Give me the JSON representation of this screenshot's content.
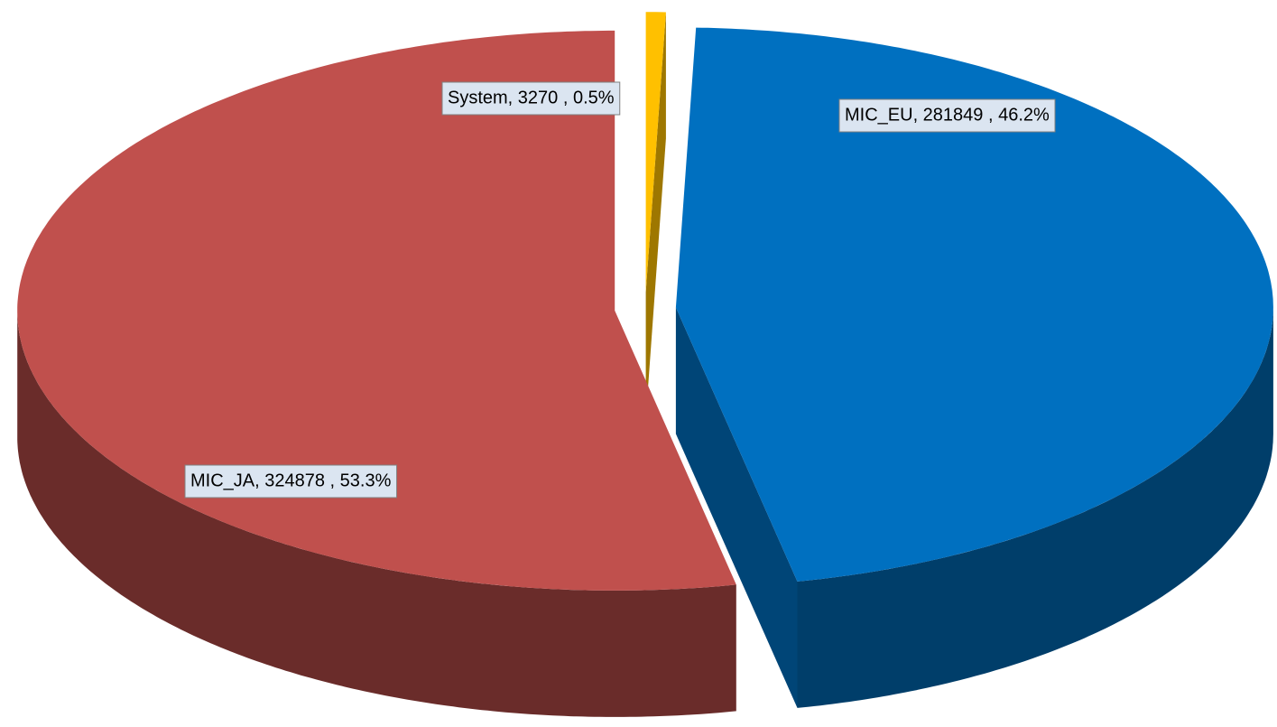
{
  "chart_data": {
    "type": "pie",
    "categories": [
      "System",
      "MIC_EU",
      "MIC_JA"
    ],
    "values": [
      3270,
      281849,
      324878
    ],
    "value_labels": [
      "System, 3270 , 0.5%",
      "MIC_EU, 281849 , 46.2%",
      "MIC_JA, 324878 , 53.3%"
    ],
    "colors": [
      "#ffc000",
      "#0070c0",
      "#c0504d"
    ],
    "exploded": true,
    "three_d": true
  }
}
